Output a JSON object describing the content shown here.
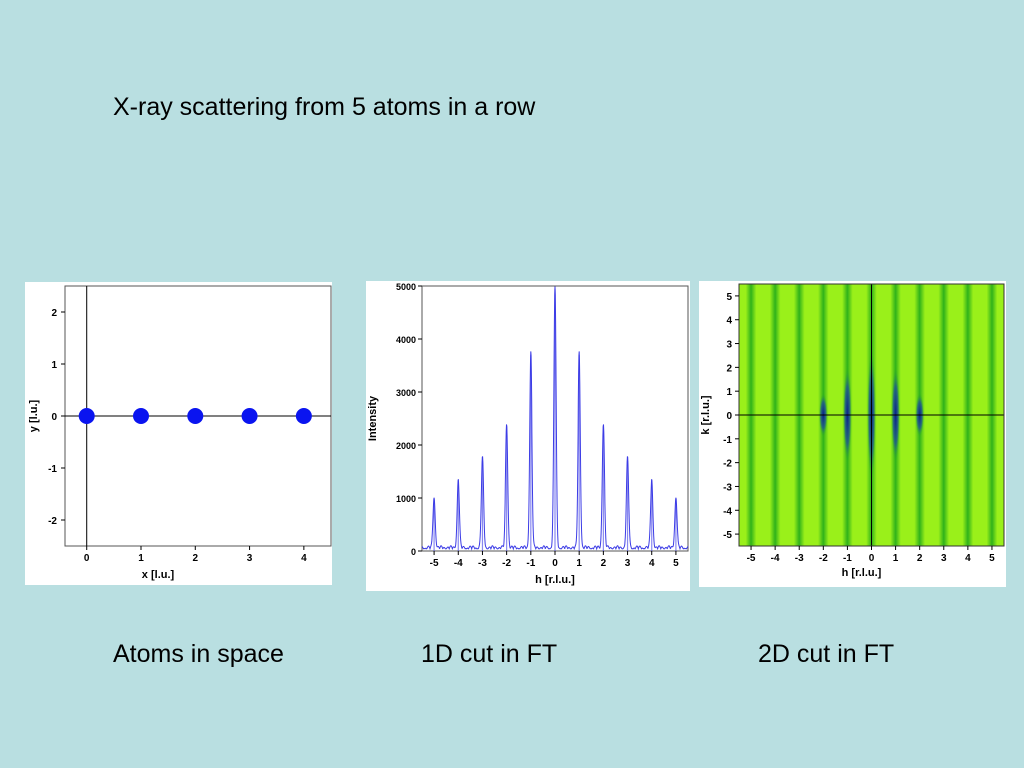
{
  "slide": {
    "title": "X-ray scattering from 5 atoms in a row",
    "captions": [
      "Atoms in space",
      "1D cut in FT",
      "2D cut in FT"
    ]
  },
  "colors": {
    "background": "#b9dfe1",
    "atom": "#0a14f0",
    "intensity_line": "#3c3ce6",
    "map_base": "#9af01a",
    "map_stripe": "#2fb21a",
    "map_deep": "#0a1e8c"
  },
  "chart_data": [
    {
      "type": "scatter",
      "title": "",
      "xlabel": "x [l.u.]",
      "ylabel": "y [l.u.]",
      "xlim": [
        -0.4,
        4.5
      ],
      "ylim": [
        -2.5,
        2.5
      ],
      "xticks": [
        "0",
        "1",
        "2",
        "3",
        "4"
      ],
      "yticks": [
        "2",
        "1",
        "0",
        "-1",
        "-2"
      ],
      "x": [
        0,
        1,
        2,
        3,
        4
      ],
      "y": [
        0,
        0,
        0,
        0,
        0
      ],
      "grid": false
    },
    {
      "type": "line",
      "title": "",
      "xlabel": "h [r.l.u.]",
      "ylabel": "Intensity",
      "xlim": [
        -5.5,
        5.5
      ],
      "ylim": [
        0,
        5000
      ],
      "xticks": [
        "-5",
        "-4",
        "-3",
        "-2",
        "-1",
        "0",
        "1",
        "2",
        "3",
        "4",
        "5"
      ],
      "yticks": [
        "5000",
        "4000",
        "3000",
        "2000",
        "1000",
        "0"
      ],
      "peaks": {
        "h": [
          -5,
          -4,
          -3,
          -2,
          -1,
          0,
          1,
          2,
          3,
          4,
          5
        ],
        "intensity": [
          950,
          1300,
          1700,
          2350,
          3700,
          4950,
          3700,
          2350,
          1700,
          1300,
          950
        ]
      },
      "grid": false
    },
    {
      "type": "heatmap",
      "title": "",
      "xlabel": "h [r.l.u.]",
      "ylabel": "k [r.l.u.]",
      "xlim": [
        -5.5,
        5.5
      ],
      "ylim": [
        -5.5,
        5.5
      ],
      "xticks": [
        "-5",
        "-4",
        "-3",
        "-2",
        "-1",
        "0",
        "1",
        "2",
        "3",
        "4",
        "5"
      ],
      "yticks": [
        "5",
        "4",
        "3",
        "2",
        "1",
        "0",
        "-1",
        "-2",
        "-3",
        "-4",
        "-5"
      ],
      "stripes_at_h": [
        -5,
        -4,
        -3,
        -2,
        -1,
        0,
        1,
        2,
        3,
        4,
        5
      ],
      "grid": false
    }
  ]
}
